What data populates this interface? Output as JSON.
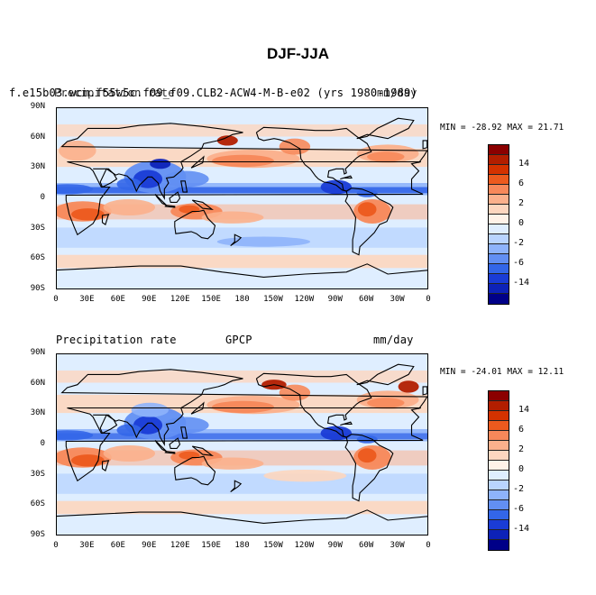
{
  "title": "DJF-JJA",
  "panel1": {
    "left_label_a": "f.e15b03.wcm.f55w5c.f09_f09.CLB2-ACW4-M-B-e02 (yrs 1980-1989)",
    "left_label_b": "Precipitation rate",
    "right_label_a": "(yrs 1980-1989)",
    "right_label_b": "mm/day",
    "min_max": "MIN = -28.92 MAX =  21.71"
  },
  "panel2": {
    "left_label": "Precipitation rate",
    "center_label": "GPCP",
    "right_label": "mm/day",
    "min_max": "MIN = -24.01 MAX =  12.11"
  },
  "lat_labels": [
    "90N",
    "60N",
    "30N",
    "0",
    "30S",
    "60S",
    "90S"
  ],
  "lon_labels": [
    "0",
    "30E",
    "60E",
    "90E",
    "120E",
    "150E",
    "180",
    "150W",
    "120W",
    "90W",
    "60W",
    "30W",
    "0"
  ],
  "colorbar": {
    "colors": [
      "#8b0000",
      "#b21e00",
      "#d43200",
      "#ec5a1e",
      "#f7885a",
      "#fbb08c",
      "#fdd6bf",
      "#fff2e8",
      "#dfeeff",
      "#b9d4ff",
      "#8eb3fb",
      "#628ff3",
      "#3366e8",
      "#1a3cd6",
      "#0d22b8",
      "#000088"
    ],
    "labels": [
      "14",
      "6",
      "2",
      "0",
      "-2",
      "-6",
      "-14"
    ]
  }
}
